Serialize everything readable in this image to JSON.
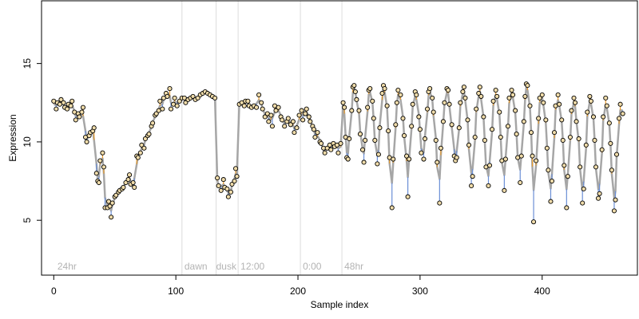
{
  "chart_data": {
    "type": "scatter",
    "title": "",
    "xlabel": "Sample index",
    "ylabel": "Expression",
    "xlim": [
      -10,
      478
    ],
    "ylim": [
      1.5,
      19
    ],
    "x_ticks": [
      0,
      100,
      200,
      300,
      400
    ],
    "y_ticks": [
      5,
      10,
      15
    ],
    "grid": false,
    "legend": "none",
    "colors": {
      "fit_line": "#a6a6a6",
      "residual_above": "#e89c2e",
      "residual_below": "#6b8fd6",
      "point_fill": "#f0dcaa",
      "point_edge": "#000000",
      "phase_divider": "#dcdcdc",
      "phase_label": "#b3b3b3"
    },
    "phase_boundaries": [
      105,
      133,
      151,
      202,
      236
    ],
    "phase_labels": [
      {
        "x": 3,
        "text": "24hr"
      },
      {
        "x": 107,
        "text": "dawn"
      },
      {
        "x": 133,
        "text": "dusk"
      },
      {
        "x": 153,
        "text": "12:00"
      },
      {
        "x": 204,
        "text": "0:00"
      },
      {
        "x": 238,
        "text": "48hr"
      }
    ],
    "series": [
      {
        "points": [
          [
            0,
            12.6
          ],
          [
            2,
            12.1
          ],
          [
            3,
            12.5
          ],
          [
            5,
            12.4
          ],
          [
            6,
            12.7
          ],
          [
            8,
            12.5
          ],
          [
            9,
            12.2
          ],
          [
            11,
            12.1
          ],
          [
            12,
            12.4
          ],
          [
            14,
            12.3
          ],
          [
            15,
            12.6
          ],
          [
            17,
            11.9
          ],
          [
            18,
            11.4
          ],
          [
            20,
            11.8
          ],
          [
            21,
            11.6
          ],
          [
            23,
            11.9
          ],
          [
            24,
            12.2
          ],
          [
            26,
            10.3
          ],
          [
            27,
            10.0
          ],
          [
            29,
            10.4
          ],
          [
            30,
            10.6
          ],
          [
            32,
            10.7
          ],
          [
            33,
            10.9
          ],
          [
            35,
            8.0
          ],
          [
            36,
            7.5
          ],
          [
            37,
            7.4
          ],
          [
            38,
            8.8
          ],
          [
            40,
            9.3
          ],
          [
            41,
            8.4
          ],
          [
            42,
            5.8
          ],
          [
            44,
            5.8
          ],
          [
            45,
            6.2
          ],
          [
            46,
            5.9
          ],
          [
            47,
            5.2
          ],
          [
            48,
            6.1
          ],
          [
            50,
            6.5
          ],
          [
            51,
            6.6
          ],
          [
            53,
            6.8
          ],
          [
            54,
            6.9
          ],
          [
            56,
            7.0
          ],
          [
            57,
            7.1
          ],
          [
            59,
            7.4
          ],
          [
            61,
            7.6
          ],
          [
            62,
            7.9
          ],
          [
            63,
            7.3
          ],
          [
            65,
            7.4
          ],
          [
            66,
            7.1
          ],
          [
            68,
            9.1
          ],
          [
            69,
            9.0
          ],
          [
            71,
            9.3
          ],
          [
            72,
            9.8
          ],
          [
            74,
            9.6
          ],
          [
            75,
            10.2
          ],
          [
            77,
            10.4
          ],
          [
            78,
            10.5
          ],
          [
            80,
            11.0
          ],
          [
            81,
            11.2
          ],
          [
            83,
            11.7
          ],
          [
            84,
            11.8
          ],
          [
            86,
            12.0
          ],
          [
            87,
            12.6
          ],
          [
            89,
            12.1
          ],
          [
            90,
            12.8
          ],
          [
            92,
            13.1
          ],
          [
            93,
            12.9
          ],
          [
            95,
            13.4
          ],
          [
            96,
            12.1
          ],
          [
            98,
            12.4
          ],
          [
            99,
            12.8
          ],
          [
            101,
            12.3
          ],
          [
            103,
            12.6
          ],
          [
            105,
            12.8
          ],
          [
            107,
            12.8
          ],
          [
            108,
            12.5
          ],
          [
            110,
            12.7
          ],
          [
            112,
            12.8
          ],
          [
            114,
            12.9
          ],
          [
            116,
            12.7
          ],
          [
            118,
            12.8
          ],
          [
            120,
            13.0
          ],
          [
            122,
            13.1
          ],
          [
            124,
            13.2
          ],
          [
            126,
            13.1
          ],
          [
            128,
            13.0
          ],
          [
            130,
            12.9
          ],
          [
            132,
            12.8
          ],
          [
            134,
            7.7
          ],
          [
            135,
            7.2
          ],
          [
            137,
            6.9
          ],
          [
            139,
            7.6
          ],
          [
            140,
            7.1
          ],
          [
            142,
            7.0
          ],
          [
            143,
            6.5
          ],
          [
            145,
            6.8
          ],
          [
            146,
            7.3
          ],
          [
            148,
            7.5
          ],
          [
            149,
            8.3
          ],
          [
            150,
            7.8
          ],
          [
            152,
            12.4
          ],
          [
            154,
            12.5
          ],
          [
            156,
            12.3
          ],
          [
            157,
            12.6
          ],
          [
            159,
            12.6
          ],
          [
            160,
            12.3
          ],
          [
            162,
            12.2
          ],
          [
            164,
            12.3
          ],
          [
            166,
            12.2
          ],
          [
            168,
            13.0
          ],
          [
            170,
            12.5
          ],
          [
            171,
            12.1
          ],
          [
            173,
            11.6
          ],
          [
            175,
            11.8
          ],
          [
            176,
            11.3
          ],
          [
            178,
            11.7
          ],
          [
            179,
            11.0
          ],
          [
            181,
            12.3
          ],
          [
            182,
            12.0
          ],
          [
            184,
            12.2
          ],
          [
            186,
            11.6
          ],
          [
            187,
            11.4
          ],
          [
            189,
            11.0
          ],
          [
            191,
            11.3
          ],
          [
            192,
            11.5
          ],
          [
            194,
            11.1
          ],
          [
            196,
            11.3
          ],
          [
            197,
            10.6
          ],
          [
            199,
            10.9
          ],
          [
            201,
            11.7
          ],
          [
            203,
            12.0
          ],
          [
            204,
            11.4
          ],
          [
            206,
            11.8
          ],
          [
            207,
            12.1
          ],
          [
            209,
            11.6
          ],
          [
            210,
            11.3
          ],
          [
            212,
            11.0
          ],
          [
            213,
            10.8
          ],
          [
            214,
            10.3
          ],
          [
            216,
            10.6
          ],
          [
            218,
            10.0
          ],
          [
            219,
            9.9
          ],
          [
            221,
            9.6
          ],
          [
            222,
            9.3
          ],
          [
            224,
            9.6
          ],
          [
            226,
            9.8
          ],
          [
            227,
            9.5
          ],
          [
            229,
            9.9
          ],
          [
            230,
            9.7
          ],
          [
            232,
            9.8
          ],
          [
            233,
            9.3
          ],
          [
            235,
            9.9
          ],
          [
            237,
            12.5
          ],
          [
            238,
            12.2
          ],
          [
            239,
            10.3
          ],
          [
            240,
            9.0
          ],
          [
            241,
            8.9
          ],
          [
            242,
            10.2
          ],
          [
            244,
            12.0
          ],
          [
            245,
            13.5
          ],
          [
            246,
            13.6
          ],
          [
            247,
            13.2
          ],
          [
            248,
            12.7
          ],
          [
            250,
            12.0
          ],
          [
            251,
            10.5
          ],
          [
            253,
            9.5
          ],
          [
            254,
            8.7
          ],
          [
            255,
            10.1
          ],
          [
            257,
            12.2
          ],
          [
            258,
            13.3
          ],
          [
            259,
            13.4
          ],
          [
            261,
            12.6
          ],
          [
            262,
            11.5
          ],
          [
            263,
            10.1
          ],
          [
            265,
            8.6
          ],
          [
            266,
            9.2
          ],
          [
            267,
            10.9
          ],
          [
            269,
            13.1
          ],
          [
            270,
            13.6
          ],
          [
            271,
            13.4
          ],
          [
            273,
            12.3
          ],
          [
            274,
            10.7
          ],
          [
            275,
            9.0
          ],
          [
            277,
            5.8
          ],
          [
            278,
            8.9
          ],
          [
            280,
            11.1
          ],
          [
            281,
            12.5
          ],
          [
            282,
            13.3
          ],
          [
            284,
            13.0
          ],
          [
            286,
            11.5
          ],
          [
            287,
            10.4
          ],
          [
            289,
            9.1
          ],
          [
            290,
            6.5
          ],
          [
            291,
            8.9
          ],
          [
            293,
            11.0
          ],
          [
            294,
            12.4
          ],
          [
            296,
            13.2
          ],
          [
            297,
            13.0
          ],
          [
            299,
            11.6
          ],
          [
            300,
            10.8
          ],
          [
            301,
            9.3
          ],
          [
            303,
            8.9
          ],
          [
            304,
            10.2
          ],
          [
            306,
            12.1
          ],
          [
            307,
            13.2
          ],
          [
            308,
            13.4
          ],
          [
            310,
            12.8
          ],
          [
            311,
            11.9
          ],
          [
            313,
            10.1
          ],
          [
            314,
            8.7
          ],
          [
            316,
            6.1
          ],
          [
            317,
            9.6
          ],
          [
            319,
            11.3
          ],
          [
            320,
            12.5
          ],
          [
            322,
            13.4
          ],
          [
            323,
            13.3
          ],
          [
            324,
            12.4
          ],
          [
            326,
            11.1
          ],
          [
            328,
            9.1
          ],
          [
            329,
            8.8
          ],
          [
            330,
            9.0
          ],
          [
            332,
            10.9
          ],
          [
            333,
            12.5
          ],
          [
            335,
            13.2
          ],
          [
            336,
            13.5
          ],
          [
            337,
            12.8
          ],
          [
            339,
            11.4
          ],
          [
            340,
            9.8
          ],
          [
            342,
            7.2
          ],
          [
            343,
            7.8
          ],
          [
            345,
            10.3
          ],
          [
            346,
            12.1
          ],
          [
            348,
            13.1
          ],
          [
            349,
            13.5
          ],
          [
            350,
            12.9
          ],
          [
            352,
            11.6
          ],
          [
            353,
            10.1
          ],
          [
            354,
            8.4
          ],
          [
            356,
            7.2
          ],
          [
            357,
            8.5
          ],
          [
            359,
            10.8
          ],
          [
            360,
            12.6
          ],
          [
            362,
            13.3
          ],
          [
            363,
            12.9
          ],
          [
            365,
            11.9
          ],
          [
            366,
            10.3
          ],
          [
            367,
            8.8
          ],
          [
            369,
            6.9
          ],
          [
            370,
            8.9
          ],
          [
            372,
            11.0
          ],
          [
            373,
            12.8
          ],
          [
            375,
            13.3
          ],
          [
            376,
            13.0
          ],
          [
            378,
            12.0
          ],
          [
            379,
            10.5
          ],
          [
            380,
            9.0
          ],
          [
            382,
            7.4
          ],
          [
            383,
            9.1
          ],
          [
            385,
            11.3
          ],
          [
            386,
            12.9
          ],
          [
            387,
            13.7
          ],
          [
            388,
            13.6
          ],
          [
            390,
            12.3
          ],
          [
            391,
            10.6
          ],
          [
            392,
            9.1
          ],
          [
            393,
            4.9
          ],
          [
            395,
            8.8
          ],
          [
            397,
            11.5
          ],
          [
            398,
            12.8
          ],
          [
            400,
            13.0
          ],
          [
            401,
            12.5
          ],
          [
            403,
            11.4
          ],
          [
            404,
            9.6
          ],
          [
            405,
            8.2
          ],
          [
            407,
            6.2
          ],
          [
            408,
            7.5
          ],
          [
            410,
            10.6
          ],
          [
            411,
            12.3
          ],
          [
            413,
            13.0
          ],
          [
            414,
            12.4
          ],
          [
            416,
            11.4
          ],
          [
            417,
            10.1
          ],
          [
            418,
            8.5
          ],
          [
            420,
            5.8
          ],
          [
            421,
            7.8
          ],
          [
            423,
            10.3
          ],
          [
            424,
            12.0
          ],
          [
            426,
            12.8
          ],
          [
            427,
            12.5
          ],
          [
            428,
            11.3
          ],
          [
            430,
            10.2
          ],
          [
            431,
            8.4
          ],
          [
            433,
            6.1
          ],
          [
            434,
            7.0
          ],
          [
            436,
            9.8
          ],
          [
            437,
            11.9
          ],
          [
            439,
            12.9
          ],
          [
            440,
            12.6
          ],
          [
            442,
            11.6
          ],
          [
            443,
            10.1
          ],
          [
            444,
            8.4
          ],
          [
            446,
            6.4
          ],
          [
            447,
            6.7
          ],
          [
            449,
            9.5
          ],
          [
            450,
            11.6
          ],
          [
            452,
            12.8
          ],
          [
            453,
            12.3
          ],
          [
            455,
            11.2
          ],
          [
            456,
            9.9
          ],
          [
            457,
            8.2
          ],
          [
            459,
            5.6
          ],
          [
            460,
            6.3
          ],
          [
            461,
            9.2
          ],
          [
            463,
            11.5
          ],
          [
            464,
            12.4
          ],
          [
            466,
            11.8
          ]
        ]
      }
    ]
  }
}
